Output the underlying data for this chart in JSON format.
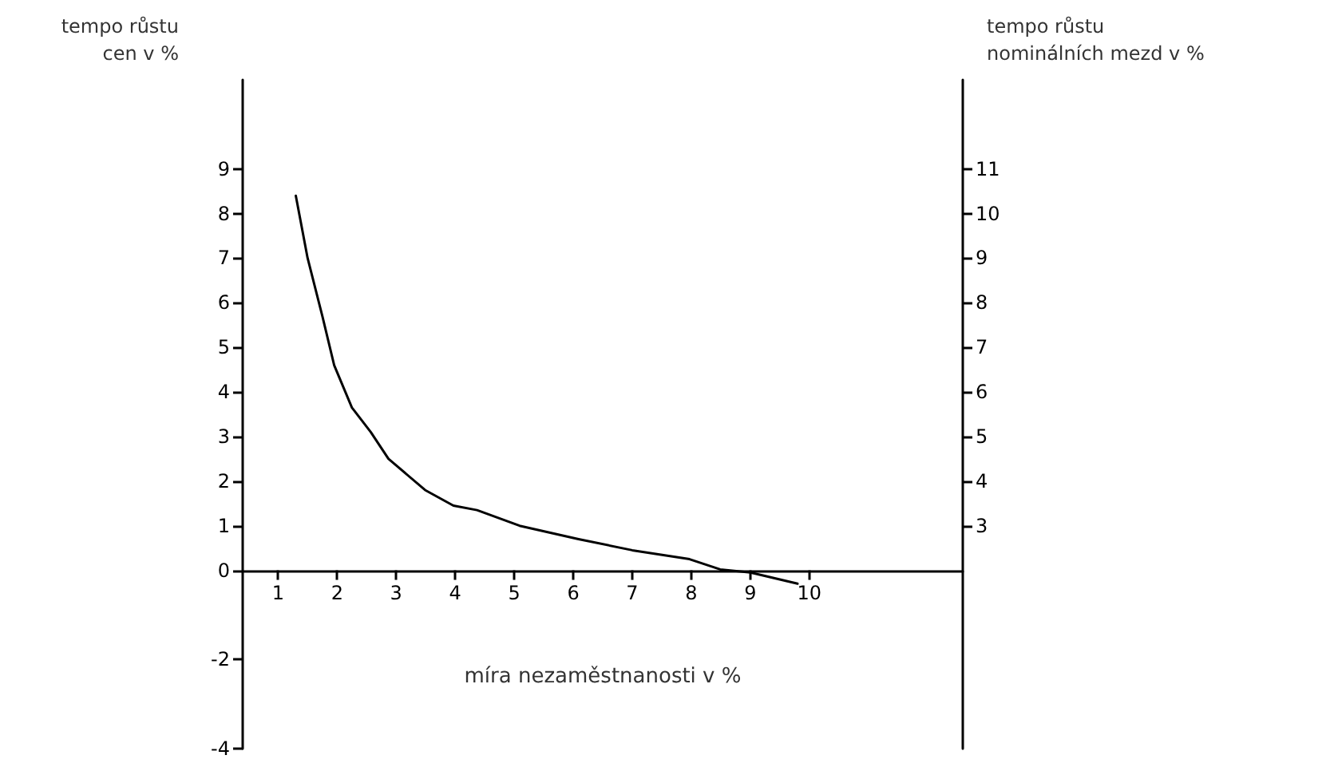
{
  "chart_data": {
    "type": "line",
    "xlabel": "míra nezaměstnanosti v %",
    "ylabel": "tempo růstu cen v %",
    "y2label": "tempo růstu nominálních mezd v %",
    "x": [
      1.3,
      1.5,
      1.75,
      1.95,
      2.25,
      2.57,
      2.87,
      3.49,
      3.97,
      4.37,
      5.09,
      6.09,
      7.0,
      7.97,
      8.49,
      9.0,
      9.8
    ],
    "series": [
      {
        "color": "#000000",
        "values": [
          8.4,
          7.0,
          5.7,
          4.6,
          3.65,
          3.1,
          2.5,
          1.8,
          1.45,
          1.35,
          1.0,
          0.7,
          0.45,
          0.25,
          0.02,
          -0.05,
          -0.3
        ]
      }
    ],
    "xlim": [
      0.4,
      12.6
    ],
    "xticks": [
      1,
      2,
      3,
      4,
      5,
      6,
      7,
      8,
      9,
      10
    ],
    "ylim": [
      -4,
      11
    ],
    "yticks": [
      -4,
      -2,
      0,
      1,
      2,
      3,
      4,
      5,
      6,
      7,
      8,
      9
    ],
    "y2lim": [
      -2,
      13
    ],
    "y2ticks": [
      3,
      4,
      5,
      6,
      7,
      8,
      9,
      10,
      11
    ],
    "grid": false,
    "marker": "none",
    "line_style": "solid"
  }
}
